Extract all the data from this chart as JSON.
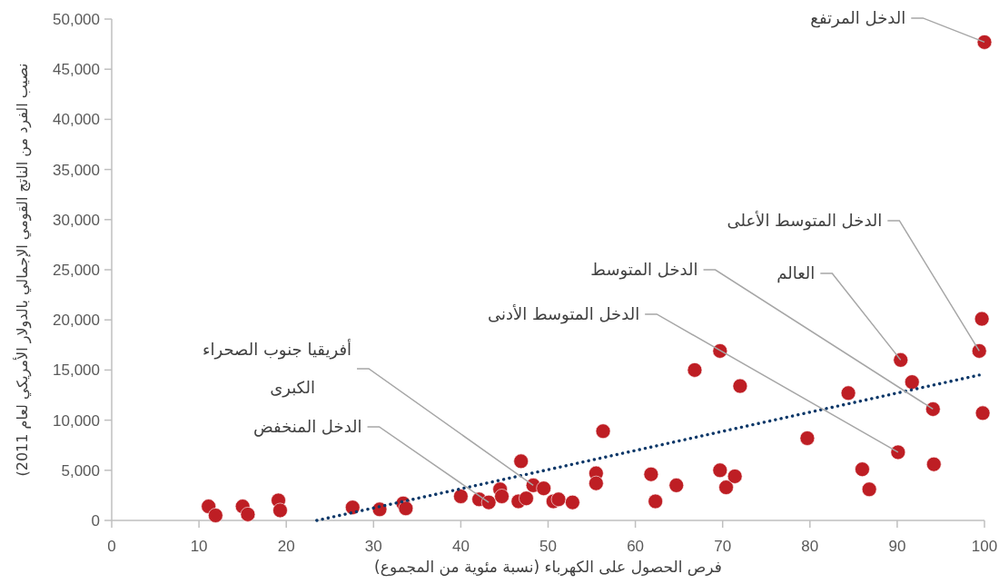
{
  "chart_data": {
    "type": "scatter",
    "xlabel": "فرص الحصول على الكهرباء (نسبة مئوية من المجموع)",
    "ylabel": "نصيب الفرد من الناتج القومي الإجمالي بالدولار الأمريكي لعام 2011)",
    "xlim": [
      0,
      100
    ],
    "ylim": [
      0,
      50000
    ],
    "xticks": [
      0,
      10,
      20,
      30,
      40,
      50,
      60,
      70,
      80,
      90,
      100
    ],
    "yticks": [
      {
        "value": 0,
        "label": "0"
      },
      {
        "value": 5000,
        "label": "5,000"
      },
      {
        "value": 10000,
        "label": "10,000"
      },
      {
        "value": 15000,
        "label": "15,000"
      },
      {
        "value": 20000,
        "label": "20,000"
      },
      {
        "value": 25000,
        "label": "25,000"
      },
      {
        "value": 30000,
        "label": "30,000"
      },
      {
        "value": 35000,
        "label": "35,000"
      },
      {
        "value": 40000,
        "label": "40,000"
      },
      {
        "value": 45000,
        "label": "45,000"
      },
      {
        "value": 50000,
        "label": "50,000"
      }
    ],
    "series": [
      {
        "color": "#be1e24",
        "marker": "circle",
        "x": [
          11.1,
          11.9,
          15.0,
          15.6,
          19.1,
          19.3,
          27.6,
          30.7,
          33.4,
          33.7,
          40.0,
          42.1,
          43.2,
          44.5,
          44.7,
          46.9,
          46.6,
          47.5,
          48.3,
          49.5,
          50.6,
          51.2,
          52.8,
          55.5,
          55.5,
          56.3,
          61.8,
          62.3,
          64.7,
          66.8,
          69.7,
          69.7,
          70.4,
          71.4,
          72.0,
          79.7,
          84.4,
          86.0,
          86.8,
          90.1,
          90.4,
          91.7,
          94.1,
          94.2,
          99.4,
          99.7,
          99.8,
          100
        ],
        "values": [
          1400,
          500,
          1400,
          600,
          2000,
          1000,
          1300,
          1100,
          1700,
          1200,
          2400,
          2100,
          1800,
          3100,
          2400,
          5900,
          1900,
          2200,
          3500,
          3200,
          1900,
          2100,
          1800,
          4700,
          3700,
          8900,
          4600,
          1900,
          3500,
          15000,
          16900,
          5000,
          3300,
          4400,
          13400,
          8200,
          12700,
          5100,
          3100,
          6800,
          16000,
          13800,
          11100,
          5600,
          16900,
          20100,
          10700,
          47700
        ]
      },
      {
        "type": "line",
        "color": "#0b3768",
        "marker": "none",
        "line_style": "dotted",
        "x": [
          23.5,
          99.4
        ],
        "values": [
          0,
          14500
        ]
      }
    ],
    "annotations": [
      {
        "text": "الدخل المرتفع",
        "x": 100,
        "y": 47700
      },
      {
        "text": "الدخل المتوسط الأعلى",
        "x": 99.4,
        "y": 16900
      },
      {
        "text": "العالم",
        "x": 90.4,
        "y": 16000
      },
      {
        "text": "الدخل المتوسط",
        "x": 94.1,
        "y": 11100
      },
      {
        "text": "الدخل المتوسط الأدنى",
        "x": 90.1,
        "y": 6800
      },
      {
        "text": "أفريقيا جنوب الصحراء الكبرى",
        "x": 48.3,
        "y": 3500
      },
      {
        "text": "الدخل المنخفض",
        "x": 43.2,
        "y": 1800
      }
    ]
  }
}
